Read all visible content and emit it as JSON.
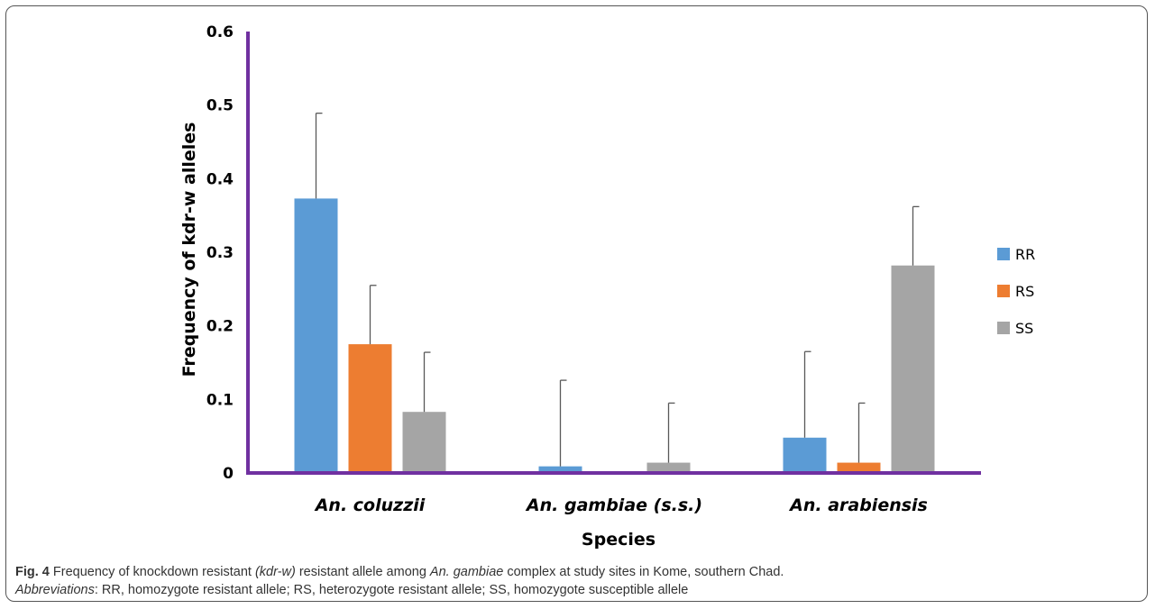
{
  "chart_data": {
    "type": "bar",
    "categories": [
      "An. coluzzii",
      "An. gambiae (s.s.)",
      "An. arabiensis"
    ],
    "series": [
      {
        "name": "RR",
        "values": [
          0.373,
          0.009,
          0.048
        ],
        "errors": [
          0.116,
          0.117,
          0.117
        ]
      },
      {
        "name": "RS",
        "values": [
          0.175,
          0.0,
          0.014
        ],
        "errors": [
          0.08,
          0.0,
          0.081
        ]
      },
      {
        "name": "SS",
        "values": [
          0.083,
          0.014,
          0.282
        ],
        "errors": [
          0.081,
          0.081,
          0.08
        ]
      }
    ],
    "xlabel": "Species",
    "ylabel": "Frequency of kdr-w alleles",
    "ylim": [
      0,
      0.6
    ],
    "yticks": [
      0,
      0.1,
      0.2,
      0.3,
      0.4,
      0.5,
      0.6
    ],
    "ytick_labels": [
      "0",
      "0.1",
      "0.2",
      "0.3",
      "0.4",
      "0.5",
      "0.6"
    ],
    "legend_position": "right",
    "grid": false,
    "colors": {
      "RR": "#5b9bd5",
      "RS": "#ed7d31",
      "SS": "#a5a5a5",
      "axis": "#7030a0",
      "error_bar": "#595959"
    }
  },
  "caption": {
    "label": "Fig. 4",
    "line1_a": " Frequency of knockdown resistant ",
    "line1_b": "(kdr-w)",
    "line1_c": " resistant allele among ",
    "line1_d": "An. gambiae",
    "line1_e": " complex at study sites in Kome, southern Chad.",
    "line2_a": "Abbreviations",
    "line2_b": ": RR, homozygote resistant allele; RS, heterozygote resistant allele; SS, homozygote susceptible allele"
  }
}
